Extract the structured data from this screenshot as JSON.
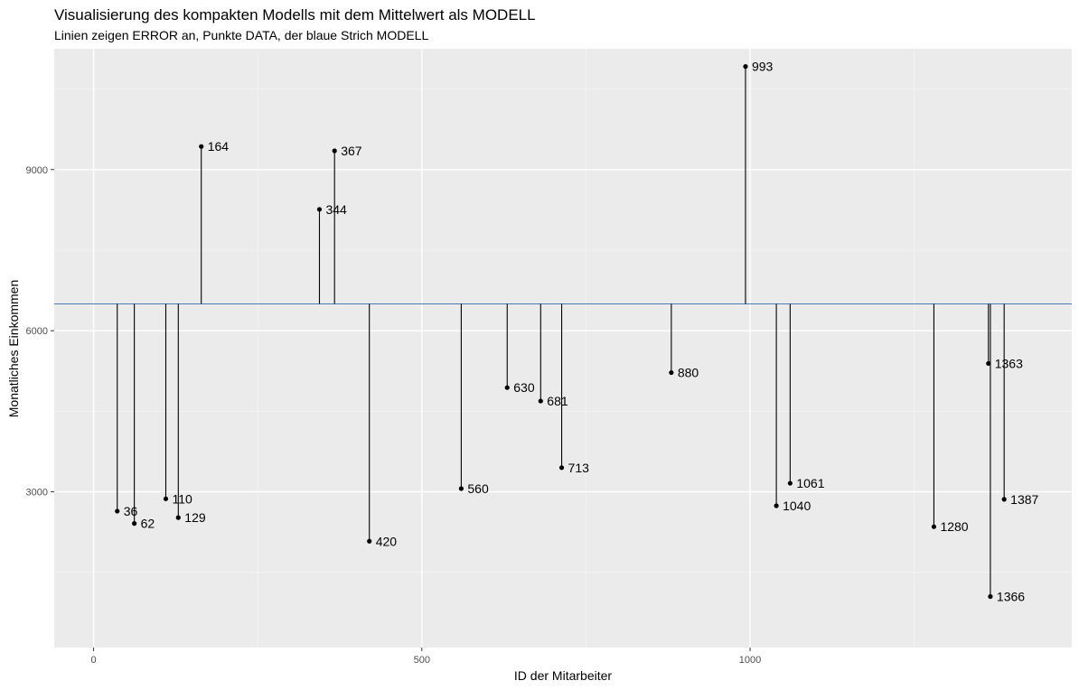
{
  "chart_data": {
    "type": "scatter",
    "title": "Visualisierung des kompakten Modells mit dem Mittelwert als MODELL",
    "subtitle": "Linien zeigen ERROR an, Punkte DATA, der blaue Strich MODELL",
    "xlabel": "ID der Mitarbeiter",
    "ylabel": "Monatliches Einkommen",
    "xlim": [
      -60,
      1490
    ],
    "ylim": [
      100,
      11250
    ],
    "x_ticks": [
      0,
      500,
      1000
    ],
    "x_tick_labels": [
      "0",
      "500",
      "1000"
    ],
    "y_ticks": [
      3000,
      6000,
      9000
    ],
    "y_tick_labels": [
      "3000",
      "6000",
      "9000"
    ],
    "grid": true,
    "model_value": 6500,
    "colors": {
      "panel_background": "#ebebeb",
      "grid_major": "#ffffff",
      "grid_minor": "#f5f5f5",
      "model_line": "#4a7bb7",
      "points": "#000000",
      "error_lines": "#000000"
    },
    "points": [
      {
        "x": 36,
        "y": 2640,
        "label": "36"
      },
      {
        "x": 62,
        "y": 2410,
        "label": "62"
      },
      {
        "x": 110,
        "y": 2870,
        "label": "110"
      },
      {
        "x": 129,
        "y": 2520,
        "label": "129"
      },
      {
        "x": 164,
        "y": 9430,
        "label": "164"
      },
      {
        "x": 344,
        "y": 8260,
        "label": "344"
      },
      {
        "x": 367,
        "y": 9350,
        "label": "367"
      },
      {
        "x": 420,
        "y": 2080,
        "label": "420"
      },
      {
        "x": 560,
        "y": 3060,
        "label": "560"
      },
      {
        "x": 630,
        "y": 4940,
        "label": "630"
      },
      {
        "x": 681,
        "y": 4690,
        "label": "681"
      },
      {
        "x": 713,
        "y": 3450,
        "label": "713"
      },
      {
        "x": 880,
        "y": 5220,
        "label": "880"
      },
      {
        "x": 993,
        "y": 10920,
        "label": "993"
      },
      {
        "x": 1040,
        "y": 2740,
        "label": "1040"
      },
      {
        "x": 1061,
        "y": 3160,
        "label": "1061"
      },
      {
        "x": 1280,
        "y": 2350,
        "label": "1280"
      },
      {
        "x": 1363,
        "y": 5390,
        "label": "1363"
      },
      {
        "x": 1366,
        "y": 1050,
        "label": "1366"
      },
      {
        "x": 1387,
        "y": 2860,
        "label": "1387"
      }
    ]
  }
}
